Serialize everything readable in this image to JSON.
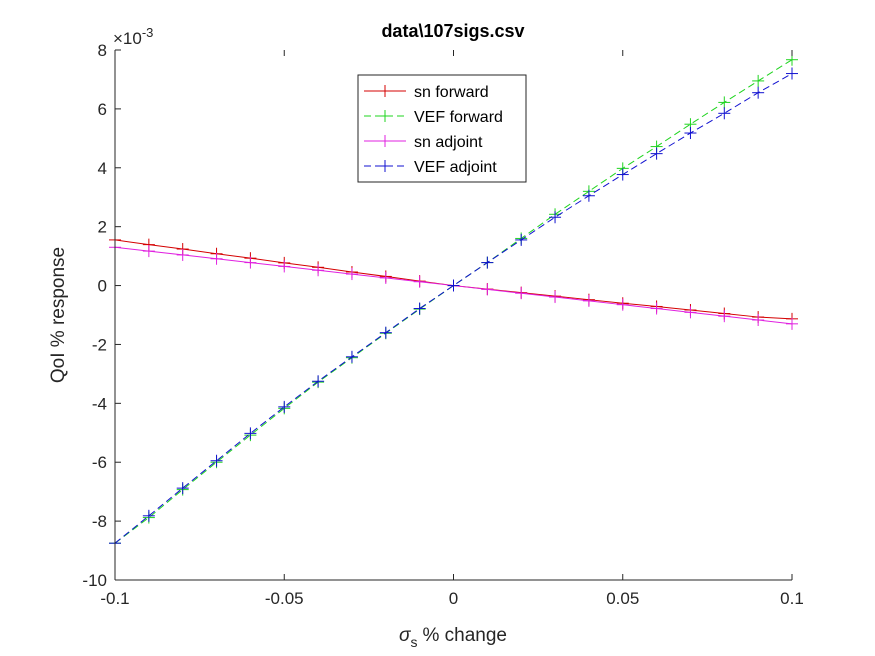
{
  "chart_data": {
    "type": "line",
    "title": "data\\107sigs.csv",
    "xlabel": "% change",
    "xlabel_symbol": "σ",
    "xlabel_subscript": "s",
    "ylabel": "QoI % response",
    "y_exponent_label": "×10",
    "y_exponent_value": "-3",
    "xlim": [
      -0.1,
      0.1
    ],
    "ylim": [
      -10,
      8
    ],
    "xticks": [
      -0.1,
      -0.05,
      0,
      0.05,
      0.1
    ],
    "xtick_labels": [
      "-0.1",
      "-0.05",
      "0",
      "0.05",
      "0.1"
    ],
    "yticks": [
      -10,
      -8,
      -6,
      -4,
      -2,
      0,
      2,
      4,
      6,
      8
    ],
    "ytick_labels": [
      "-10",
      "-8",
      "-6",
      "-4",
      "-2",
      "0",
      "2",
      "4",
      "6",
      "8"
    ],
    "grid": false,
    "legend_placement": "top-center",
    "x": [
      -0.1,
      -0.09,
      -0.08,
      -0.07,
      -0.06,
      -0.05,
      -0.04,
      -0.03,
      -0.02,
      -0.01,
      0,
      0.01,
      0.02,
      0.03,
      0.04,
      0.05,
      0.06,
      0.07,
      0.08,
      0.09,
      0.1
    ],
    "series": [
      {
        "name": "sn forward",
        "color": "#d40000",
        "dash": "solid",
        "values": [
          1.55,
          1.39,
          1.24,
          1.08,
          0.93,
          0.77,
          0.62,
          0.46,
          0.31,
          0.15,
          0,
          -0.12,
          -0.24,
          -0.36,
          -0.48,
          -0.6,
          -0.71,
          -0.83,
          -0.95,
          -1.07,
          -1.13
        ]
      },
      {
        "name": "VEF forward",
        "color": "#1fd41f",
        "dash": "dashed",
        "values": [
          -8.75,
          -7.88,
          -6.93,
          -6.0,
          -5.08,
          -4.17,
          -3.28,
          -2.45,
          -1.62,
          -0.8,
          0,
          0.78,
          1.6,
          2.42,
          3.2,
          3.98,
          4.72,
          5.48,
          6.22,
          6.95,
          7.67
        ]
      },
      {
        "name": "sn adjoint",
        "color": "#e020e0",
        "dash": "solid",
        "values": [
          1.3,
          1.17,
          1.04,
          0.91,
          0.78,
          0.65,
          0.52,
          0.39,
          0.26,
          0.13,
          0,
          -0.13,
          -0.26,
          -0.39,
          -0.52,
          -0.65,
          -0.78,
          -0.91,
          -1.04,
          -1.17,
          -1.3
        ]
      },
      {
        "name": "VEF adjoint",
        "color": "#1010d0",
        "dash": "dashed",
        "values": [
          -8.75,
          -7.82,
          -6.88,
          -5.95,
          -5.02,
          -4.12,
          -3.25,
          -2.42,
          -1.6,
          -0.78,
          0,
          0.78,
          1.55,
          2.32,
          3.05,
          3.77,
          4.48,
          5.18,
          5.85,
          6.55,
          7.2
        ]
      }
    ]
  }
}
